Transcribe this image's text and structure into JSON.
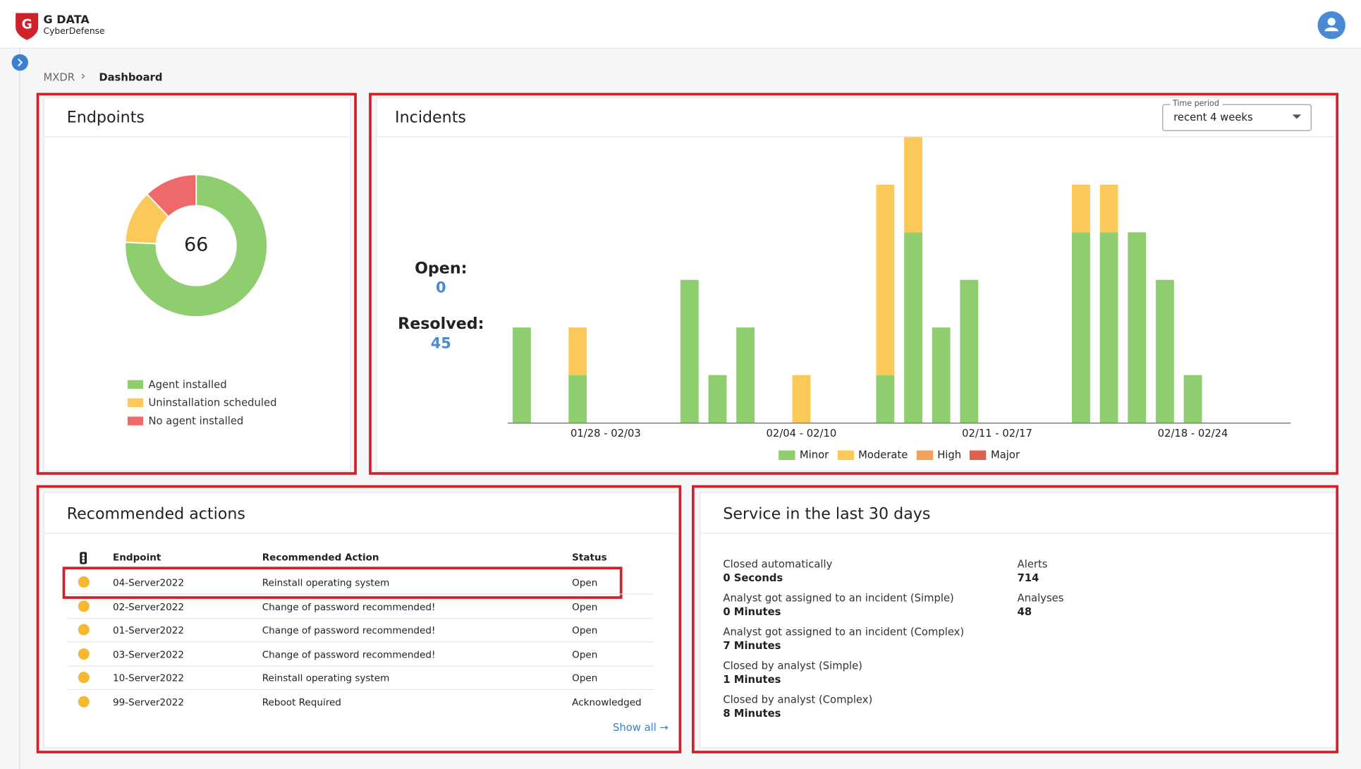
{
  "header": {
    "brand": "G DATA",
    "sub": "CyberDefense"
  },
  "breadcrumb": [
    "MXDR",
    "Dashboard"
  ],
  "endpoints": {
    "title": "Endpoints",
    "total": 66
  },
  "incidents": {
    "title": "Incidents",
    "time_period_label": "Time period",
    "time_period_value": "recent 4 weeks",
    "open_label": "Open:",
    "open_value": 0,
    "resolved_label": "Resolved:",
    "resolved_value": 45
  },
  "chart_data": [
    {
      "type": "pie",
      "categories": [
        "Agent installed",
        "Uninstallation scheduled",
        "No agent installed"
      ],
      "values": [
        50,
        8,
        8
      ],
      "colors": [
        "#8fce6f",
        "#fcc85a",
        "#ee6a6a"
      ]
    },
    {
      "type": "bar",
      "stacked": true,
      "categories": [
        null,
        null,
        null,
        "01/28 - 02/03",
        null,
        null,
        null,
        null,
        null,
        null,
        "02/04 - 02/10",
        null,
        null,
        null,
        null,
        null,
        null,
        "02/11 - 02/17",
        null,
        null,
        null,
        null,
        null,
        null,
        "02/18 - 02/24",
        null,
        null,
        null
      ],
      "ylim": [
        0,
        6
      ],
      "series": [
        {
          "name": "Minor",
          "color": "#8fce6f",
          "values": [
            2,
            0,
            1,
            0,
            0,
            0,
            3,
            1,
            2,
            0,
            0,
            0,
            0,
            1,
            4,
            2,
            3,
            0,
            0,
            0,
            4,
            4,
            4,
            3,
            1,
            0,
            0,
            0
          ]
        },
        {
          "name": "Moderate",
          "color": "#fcc85a",
          "values": [
            0,
            0,
            1,
            0,
            0,
            0,
            0,
            0,
            0,
            0,
            1,
            0,
            0,
            4,
            2,
            0,
            0,
            0,
            0,
            0,
            1,
            1,
            0,
            0,
            0,
            0,
            0,
            0
          ]
        },
        {
          "name": "High",
          "color": "#f0a35c",
          "values": [
            0,
            0,
            0,
            0,
            0,
            0,
            0,
            0,
            0,
            0,
            0,
            0,
            0,
            0,
            0,
            0,
            0,
            0,
            0,
            0,
            0,
            0,
            0,
            0,
            0,
            0,
            0,
            0
          ]
        },
        {
          "name": "Major",
          "color": "#e0604f",
          "values": [
            0,
            0,
            0,
            0,
            0,
            0,
            0,
            0,
            0,
            0,
            0,
            0,
            0,
            0,
            0,
            0,
            0,
            0,
            0,
            0,
            0,
            0,
            0,
            0,
            0,
            0,
            0,
            0
          ]
        }
      ]
    }
  ],
  "recommended": {
    "title": "Recommended actions",
    "columns": [
      "Endpoint",
      "Recommended Action",
      "Status"
    ],
    "rows": [
      [
        "04-Server2022",
        "Reinstall operating system",
        "Open"
      ],
      [
        "02-Server2022",
        "Change of password recommended!",
        "Open"
      ],
      [
        "01-Server2022",
        "Change of password recommended!",
        "Open"
      ],
      [
        "03-Server2022",
        "Change of password recommended!",
        "Open"
      ],
      [
        "10-Server2022",
        "Reinstall operating system",
        "Open"
      ],
      [
        "99-Server2022",
        "Reboot Required",
        "Acknowledged"
      ]
    ],
    "show_all": "Show all"
  },
  "service": {
    "title": "Service in the last 30 days",
    "left": [
      {
        "label": "Closed automatically",
        "value": "0 Seconds"
      },
      {
        "label": "Analyst got assigned to an incident (Simple)",
        "value": "0 Minutes"
      },
      {
        "label": "Analyst got assigned to an incident (Complex)",
        "value": "7 Minutes"
      },
      {
        "label": "Closed by analyst (Simple)",
        "value": "1 Minutes"
      },
      {
        "label": "Closed by analyst (Complex)",
        "value": "8 Minutes"
      }
    ],
    "right": [
      {
        "label": "Alerts",
        "value": 714
      },
      {
        "label": "Analyses",
        "value": 48
      }
    ]
  }
}
